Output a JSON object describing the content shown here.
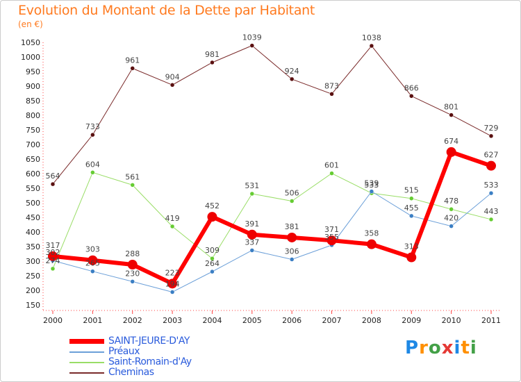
{
  "title": "Evolution du Montant de la Dette par Habitant",
  "unit": "(en €)",
  "logo": {
    "text": "Proxiti",
    "colors": [
      "#1e88e5",
      "#ff8f00",
      "#43a047",
      "#e53935",
      "#1e88e5",
      "#ff8f00",
      "#43a047"
    ]
  },
  "chart_data": {
    "type": "line",
    "title": "Evolution du Montant de la Dette par Habitant",
    "ylabel": "(en €)",
    "xlabel": "",
    "ylim": [
      150,
      1050
    ],
    "yticks": [
      150,
      200,
      250,
      300,
      350,
      400,
      450,
      500,
      550,
      600,
      650,
      700,
      750,
      800,
      850,
      900,
      950,
      1000,
      1050
    ],
    "grid": false,
    "legend_position": "bottom-left",
    "x": [
      "2000",
      "2001",
      "2002",
      "2003",
      "2004",
      "2005",
      "2006",
      "2007",
      "2008",
      "2009",
      "2010",
      "2011"
    ],
    "series": [
      {
        "name": "Cheminas",
        "color": "#7a2a2a",
        "marker": "#5a1010",
        "width": 1,
        "radius": 3,
        "values": [
          564,
          733,
          961,
          904,
          981,
          1039,
          924,
          873,
          1038,
          866,
          801,
          729
        ]
      },
      {
        "name": "Saint-Romain-d'Ay",
        "color": "#99dd66",
        "marker": "#66cc33",
        "width": 1,
        "radius": 3,
        "values": [
          274,
          604,
          561,
          419,
          309,
          531,
          506,
          601,
          533,
          515,
          478,
          443
        ]
      },
      {
        "name": "Préaux",
        "color": "#6b9fd8",
        "marker": "#3b7fc4",
        "width": 1,
        "radius": 3,
        "values": [
          302,
          265,
          230,
          194,
          264,
          337,
          306,
          355,
          539,
          455,
          420,
          533
        ]
      },
      {
        "name": "SAINT-JEURE-D'AY",
        "color": "#ff0000",
        "marker": "#ee0000",
        "width": 6,
        "radius": 7,
        "values": [
          317,
          303,
          288,
          223,
          452,
          391,
          381,
          371,
          358,
          313,
          674,
          627
        ]
      }
    ],
    "legend_order": [
      "SAINT-JEURE-D'AY",
      "Préaux",
      "Saint-Romain-d'Ay",
      "Cheminas"
    ]
  }
}
